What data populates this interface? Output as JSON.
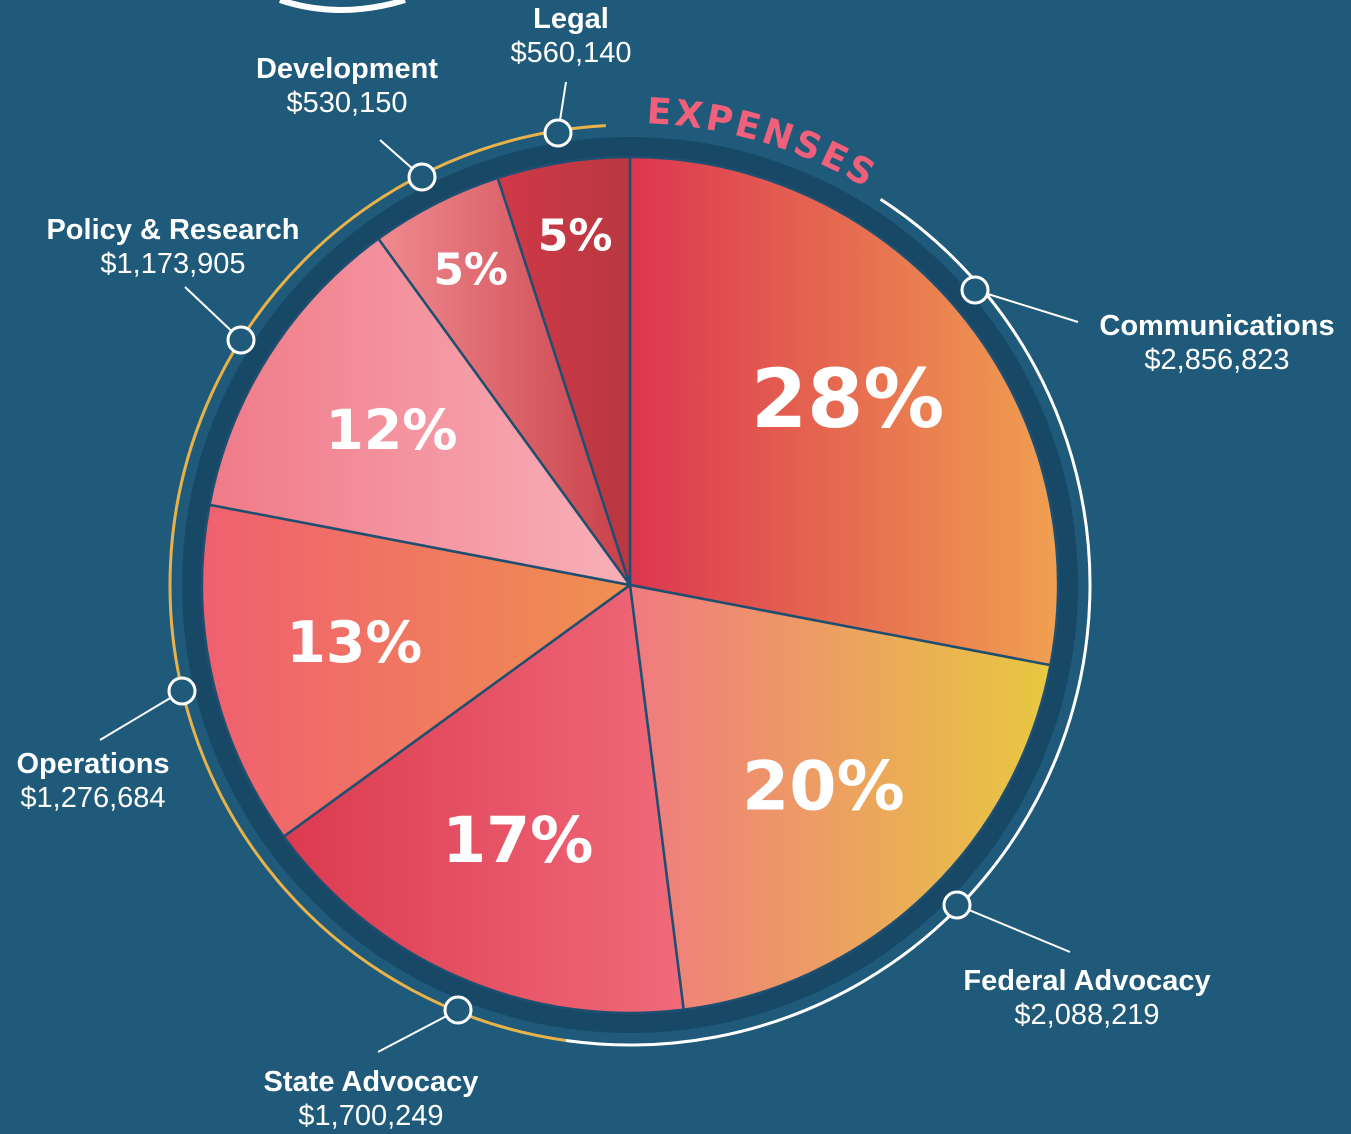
{
  "chart_data": {
    "type": "pie",
    "title": "EXPENSES",
    "categories": [
      "Communications",
      "Federal Advocacy",
      "State Advocacy",
      "Operations",
      "Policy & Research",
      "Development",
      "Legal"
    ],
    "values": [
      28,
      20,
      17,
      13,
      12,
      5,
      5
    ],
    "value_labels": [
      "28%",
      "20%",
      "17%",
      "13%",
      "12%",
      "5%",
      "5%"
    ],
    "amounts": [
      "$2,856,823",
      "$2,088,219",
      "$1,700,249",
      "$1,276,684",
      "$1,173,905",
      "$530,150",
      "$560,140"
    ],
    "colors": [
      [
        "#dc3650",
        "#f0a050"
      ],
      [
        "#f07a80",
        "#e8c840"
      ],
      [
        "#dc3a50",
        "#f06a7a"
      ],
      [
        "#f06070",
        "#f09050"
      ],
      [
        "#f07a88",
        "#f8b0b8"
      ],
      [
        "#f08a90",
        "#c84048"
      ],
      [
        "#d03848",
        "#b83840"
      ]
    ]
  }
}
